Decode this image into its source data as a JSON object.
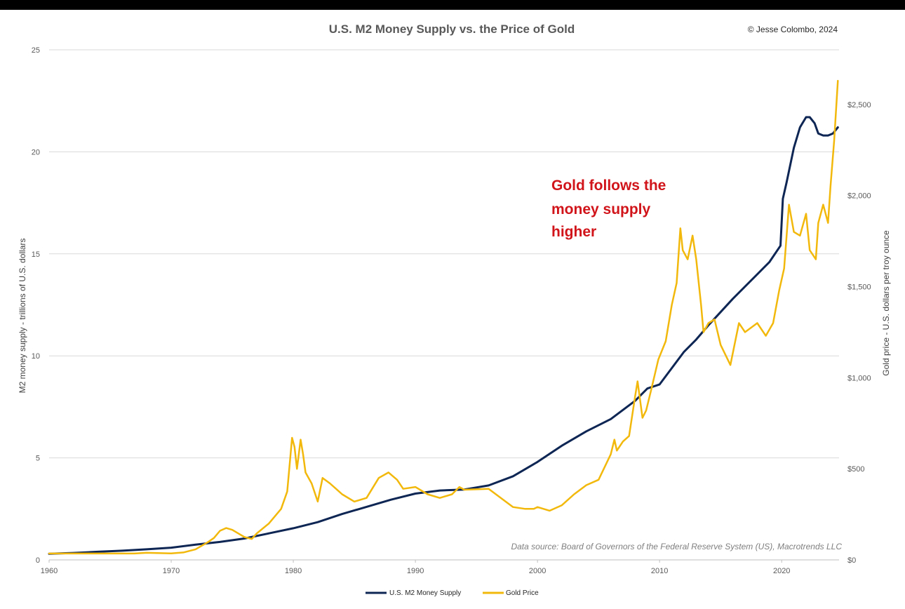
{
  "copyright": "© Jesse Colombo, 2024",
  "source_note": "Data source: Board of Governors of the Federal Reserve System (US), Macrotrends LLC",
  "annotation": [
    "Gold follows the",
    "money supply",
    "higher"
  ],
  "colors": {
    "m2": "#0e2654",
    "gold": "#f2b90c",
    "annotation": "#d0141a",
    "grid": "#d9d9d9"
  },
  "chart_data": {
    "type": "line",
    "title": "U.S. M2 Money Supply vs. the Price of Gold",
    "xlabel": "",
    "ylabel": "M2 money supply - trillions of U.S. dollars",
    "y2label": "Gold price - U.S. dollars per troy ounce",
    "xlim": [
      1960,
      2024.7
    ],
    "ylim": [
      0,
      25
    ],
    "y2lim": [
      0,
      2800
    ],
    "x_ticks": [
      1960,
      1970,
      1980,
      1990,
      2000,
      2010,
      2020
    ],
    "x_tick_labels": [
      "1960",
      "1970",
      "1980",
      "1990",
      "2000",
      "2010",
      "2020"
    ],
    "y_ticks": [
      0,
      5,
      10,
      15,
      20,
      25
    ],
    "y_tick_labels": [
      "0",
      "5",
      "10",
      "15",
      "20",
      "25"
    ],
    "y2_ticks": [
      0,
      500,
      1000,
      1500,
      2000,
      2500
    ],
    "y2_tick_labels": [
      "$0",
      "$500",
      "$1,000",
      "$1,500",
      "$2,000",
      "$2,500"
    ],
    "grid": true,
    "legend_position": "bottom",
    "series": [
      {
        "name": "U.S. M2 Money Supply",
        "axis": "left",
        "color": "#0e2654",
        "x": [
          1960,
          1962,
          1964,
          1966,
          1968,
          1970,
          1972,
          1974,
          1976,
          1978,
          1980,
          1982,
          1984,
          1986,
          1988,
          1990,
          1992,
          1994,
          1996,
          1998,
          2000,
          2002,
          2004,
          2006,
          2008,
          2009,
          2010,
          2011,
          2012,
          2013,
          2014,
          2016,
          2018,
          2019,
          2019.9,
          2020.1,
          2020.4,
          2021,
          2021.5,
          2022,
          2022.3,
          2022.7,
          2023,
          2023.4,
          2023.8,
          2024.2,
          2024.6
        ],
        "values": [
          0.3,
          0.34,
          0.4,
          0.45,
          0.52,
          0.6,
          0.75,
          0.88,
          1.05,
          1.3,
          1.55,
          1.85,
          2.25,
          2.6,
          2.95,
          3.25,
          3.4,
          3.45,
          3.65,
          4.1,
          4.8,
          5.6,
          6.3,
          6.9,
          7.8,
          8.4,
          8.6,
          9.4,
          10.2,
          10.8,
          11.5,
          12.8,
          14.0,
          14.6,
          15.4,
          17.7,
          18.5,
          20.2,
          21.2,
          21.7,
          21.7,
          21.4,
          20.9,
          20.8,
          20.8,
          20.9,
          21.2
        ]
      },
      {
        "name": "Gold Price",
        "axis": "right",
        "color": "#f2b90c",
        "x": [
          1960,
          1967,
          1968,
          1970,
          1971,
          1972,
          1973,
          1973.5,
          1974,
          1974.5,
          1975,
          1976,
          1976.6,
          1977,
          1978,
          1979,
          1979.5,
          1979.9,
          1980.1,
          1980.3,
          1980.6,
          1980.8,
          1981,
          1981.5,
          1982,
          1982.4,
          1983,
          1983.5,
          1984,
          1985,
          1986,
          1987,
          1987.8,
          1988.5,
          1989,
          1990,
          1991,
          1992,
          1993,
          1993.6,
          1994,
          1996,
          1997,
          1998,
          1999,
          1999.7,
          2000,
          2001,
          2002,
          2003,
          2004,
          2005,
          2006,
          2006.3,
          2006.5,
          2007,
          2007.5,
          2008,
          2008.2,
          2008.6,
          2008.9,
          2009.3,
          2009.9,
          2010.5,
          2011,
          2011.4,
          2011.7,
          2011.9,
          2012.3,
          2012.7,
          2013,
          2013.4,
          2013.6,
          2014,
          2014.5,
          2015,
          2015.8,
          2016.5,
          2017,
          2018,
          2018.7,
          2019.3,
          2019.8,
          2020.2,
          2020.6,
          2021,
          2021.5,
          2022,
          2022.3,
          2022.8,
          2023,
          2023.4,
          2023.8,
          2024,
          2024.3,
          2024.6
        ],
        "values": [
          35,
          35,
          39,
          36,
          41,
          58,
          97,
          120,
          160,
          175,
          165,
          125,
          115,
          145,
          200,
          280,
          375,
          670,
          620,
          500,
          660,
          580,
          480,
          420,
          320,
          450,
          420,
          390,
          360,
          320,
          340,
          450,
          480,
          440,
          390,
          400,
          360,
          340,
          360,
          400,
          385,
          390,
          340,
          290,
          280,
          280,
          290,
          270,
          300,
          360,
          410,
          440,
          580,
          660,
          600,
          650,
          680,
          900,
          980,
          780,
          820,
          930,
          1100,
          1200,
          1400,
          1520,
          1820,
          1700,
          1650,
          1780,
          1650,
          1400,
          1250,
          1300,
          1320,
          1180,
          1070,
          1300,
          1250,
          1300,
          1230,
          1300,
          1480,
          1600,
          1950,
          1800,
          1780,
          1900,
          1700,
          1650,
          1850,
          1950,
          1850,
          2050,
          2300,
          2630
        ]
      }
    ]
  }
}
